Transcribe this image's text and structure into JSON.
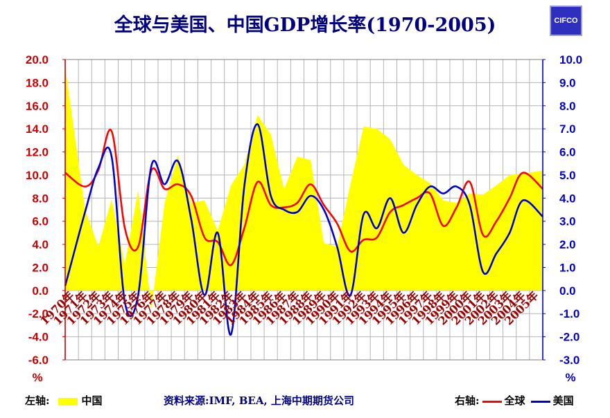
{
  "title": "全球与美国、中国GDP增长率(1970-2005)",
  "logo": "CIFCO",
  "footer": {
    "left_label": "左轴:",
    "china_label": "中国",
    "source": "资料来源:IMF, BEA, 上海中期期货公司",
    "right_label": "右轴:",
    "world_label": "全球",
    "us_label": "美国"
  },
  "colors": {
    "china": "#ffff00",
    "world": "#ff0000",
    "us": "#0000cc",
    "left_axis": "#cc0000",
    "right_axis": "#0000cc"
  },
  "chart_data": {
    "type": "area",
    "categories": [
      "1970年",
      "1971年",
      "1972年",
      "1973年",
      "1974年",
      "1975年",
      "1976年",
      "1977年",
      "1978年",
      "1979年",
      "1980年",
      "1981年",
      "1982年",
      "1983年",
      "1984年",
      "1985年",
      "1986年",
      "1987年",
      "1988年",
      "1989年",
      "1990年",
      "1991年",
      "1992年",
      "1993年",
      "1994年",
      "1995年",
      "1996年",
      "1997年",
      "1998年",
      "1999年",
      "2000年",
      "2001年",
      "2002年",
      "2003年",
      "2004年",
      "2005年"
    ],
    "left_axis": {
      "min": -6.0,
      "max": 20.0,
      "step": 2.0,
      "unit": "%",
      "ticks": [
        "20.0",
        "18.0",
        "16.0",
        "14.0",
        "12.0",
        "10.0",
        "8.0",
        "6.0",
        "4.0",
        "2.0",
        "0.0",
        "-2.0",
        "-4.0",
        "-6.0"
      ]
    },
    "right_axis": {
      "min": -3.0,
      "max": 10.0,
      "step": 1.0,
      "unit": "%",
      "ticks": [
        "10.0",
        "9.0",
        "8.0",
        "7.0",
        "6.0",
        "5.0",
        "4.0",
        "3.0",
        "2.0",
        "1.0",
        "0.0",
        "-1.0",
        "-2.0",
        "-3.0"
      ]
    },
    "grid": true,
    "series": [
      {
        "name": "中国",
        "axis": "left",
        "type": "area",
        "values": [
          19.4,
          7.0,
          3.8,
          7.9,
          2.3,
          8.7,
          -1.6,
          7.6,
          11.7,
          7.6,
          7.8,
          5.2,
          9.1,
          10.9,
          15.2,
          13.5,
          8.8,
          11.6,
          11.3,
          4.1,
          3.8,
          9.2,
          14.2,
          14.0,
          13.1,
          10.9,
          10.0,
          9.3,
          7.8,
          7.6,
          8.4,
          8.3,
          9.1,
          10.0,
          10.1,
          10.4
        ]
      },
      {
        "name": "全球",
        "axis": "right",
        "type": "line",
        "values": [
          5.1,
          4.5,
          5.2,
          6.9,
          2.7,
          1.9,
          5.2,
          4.4,
          4.6,
          4.1,
          2.3,
          2.1,
          1.1,
          2.7,
          4.7,
          3.7,
          3.6,
          3.8,
          4.6,
          3.7,
          2.9,
          1.7,
          2.2,
          2.3,
          3.4,
          3.7,
          4.0,
          4.2,
          2.8,
          3.6,
          4.7,
          2.4,
          3.0,
          4.0,
          5.1,
          4.4
        ]
      },
      {
        "name": "美国",
        "axis": "right",
        "type": "line",
        "values": [
          0.2,
          3.4,
          5.3,
          5.8,
          -0.5,
          -0.2,
          5.4,
          4.6,
          5.6,
          3.1,
          -0.2,
          2.5,
          -1.9,
          4.5,
          7.2,
          4.1,
          3.5,
          3.4,
          4.1,
          3.5,
          1.9,
          -0.2,
          3.3,
          2.7,
          4.0,
          2.5,
          3.7,
          4.5,
          4.2,
          4.5,
          3.7,
          0.8,
          1.6,
          2.5,
          3.9,
          3.2
        ]
      }
    ]
  }
}
